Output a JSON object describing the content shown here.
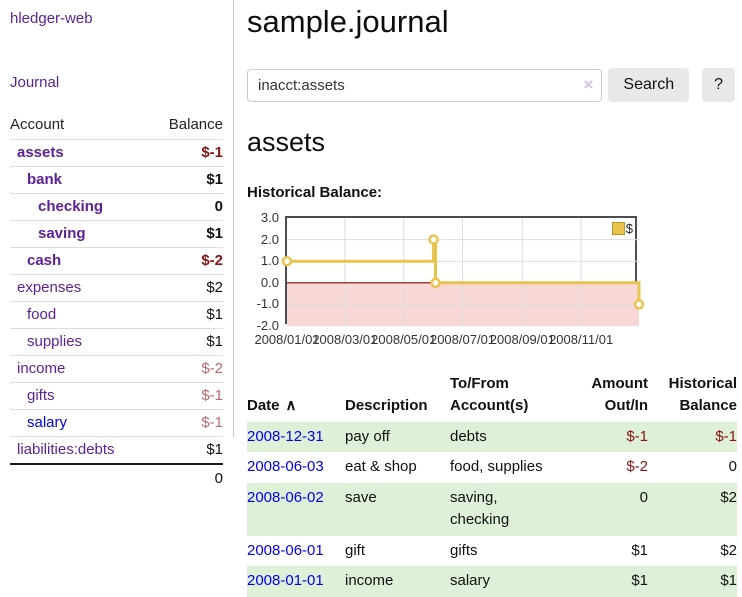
{
  "app": {
    "title": "hledger-web"
  },
  "colors": {
    "purple": "#5c1f99",
    "blue": "#0000ee",
    "neg_strong": "#8b1212",
    "neg_soft": "#b96a6a",
    "green_row": "#dff0d8",
    "yellow": "#e8c44d",
    "pink": "#f8d7d7",
    "zero_line": "#8b0000",
    "btn_bg": "#e8e8e8"
  },
  "sidebar": {
    "journal_link": "Journal",
    "headers": {
      "account": "Account",
      "balance": "Balance"
    },
    "accounts": [
      {
        "name": "assets",
        "level": 1,
        "bold": true,
        "link_color": "purple",
        "balance": "$-1",
        "balance_style": "neg-strong"
      },
      {
        "name": "bank",
        "level": 2,
        "bold": true,
        "link_color": "purple",
        "balance": "$1",
        "balance_style": ""
      },
      {
        "name": "checking",
        "level": 3,
        "bold": true,
        "link_color": "purple",
        "balance": "0",
        "balance_style": ""
      },
      {
        "name": "saving",
        "level": 3,
        "bold": true,
        "link_color": "purple",
        "balance": "$1",
        "balance_style": ""
      },
      {
        "name": "cash",
        "level": 2,
        "bold": true,
        "link_color": "purple",
        "balance": "$-2",
        "balance_style": "neg-strong"
      },
      {
        "name": "expenses",
        "level": 1,
        "bold": false,
        "link_color": "purple",
        "balance": "$2",
        "balance_style": ""
      },
      {
        "name": "food",
        "level": 2,
        "bold": false,
        "link_color": "purple",
        "balance": "$1",
        "balance_style": ""
      },
      {
        "name": "supplies",
        "level": 2,
        "bold": false,
        "link_color": "purple",
        "balance": "$1",
        "balance_style": ""
      },
      {
        "name": "income",
        "level": 1,
        "bold": false,
        "link_color": "purple",
        "balance": "$-2",
        "balance_style": "neg-soft"
      },
      {
        "name": "gifts",
        "level": 2,
        "bold": false,
        "link_color": "purple",
        "balance": "$-1",
        "balance_style": "neg-soft"
      },
      {
        "name": "salary",
        "level": 2,
        "bold": false,
        "link_color": "blue",
        "balance": "$-1",
        "balance_style": "neg-soft"
      },
      {
        "name": "liabilities:debts",
        "level": 1,
        "bold": false,
        "link_color": "purple",
        "balance": "$1",
        "balance_style": ""
      }
    ],
    "total": "0"
  },
  "main": {
    "title": "sample.journal",
    "search": {
      "value": "inacct:assets",
      "clear_icon": "×",
      "button": "Search",
      "help_button": "?"
    },
    "account_heading": "assets",
    "chart_label": "Historical Balance:"
  },
  "chart_data": {
    "type": "line",
    "title": "Historical Balance",
    "step": true,
    "legend": [
      {
        "label": "$",
        "color": "#e8c44d"
      }
    ],
    "xlim": [
      "2008-01-01",
      "2008-12-31"
    ],
    "ylim": [
      -2,
      3
    ],
    "y_ticks": [
      "3.0",
      "2.0",
      "1.0",
      "0.0",
      "-1.0",
      "-2.0"
    ],
    "x_ticks": [
      "2008/01/01",
      "2008/03/01",
      "2008/05/01",
      "2008/07/01",
      "2008/09/01",
      "2008/11/01"
    ],
    "points": [
      {
        "date": "2008-01-01",
        "value": 1
      },
      {
        "date": "2008-06-01",
        "value": 2
      },
      {
        "date": "2008-06-03",
        "value": 0
      },
      {
        "date": "2008-12-31",
        "value": -1
      }
    ],
    "negative_region_shaded": true,
    "grid": true,
    "legend_position": "top-right"
  },
  "register_table": {
    "sort_icon": "∧",
    "headers": [
      {
        "text": "Date",
        "align": "left",
        "sortable": true
      },
      {
        "text": "Description",
        "align": "left"
      },
      {
        "text": "To/From Account(s)",
        "align": "left"
      },
      {
        "text": "Amount Out/In",
        "align": "right"
      },
      {
        "text": "Historical Balance",
        "align": "right"
      }
    ],
    "rows": [
      {
        "date": "2008-12-31",
        "description": "pay off",
        "tofrom": "debts",
        "amount": "$-1",
        "amount_neg": true,
        "balance": "$-1",
        "balance_neg": true
      },
      {
        "date": "2008-06-03",
        "description": "eat & shop",
        "tofrom": "food, supplies",
        "amount": "$-2",
        "amount_neg": true,
        "balance": "0",
        "balance_neg": false
      },
      {
        "date": "2008-06-02",
        "description": "save",
        "tofrom": "saving, checking",
        "amount": "0",
        "amount_neg": false,
        "balance": "$2",
        "balance_neg": false
      },
      {
        "date": "2008-06-01",
        "description": "gift",
        "tofrom": "gifts",
        "amount": "$1",
        "amount_neg": false,
        "balance": "$2",
        "balance_neg": false
      },
      {
        "date": "2008-01-01",
        "description": "income",
        "tofrom": "salary",
        "amount": "$1",
        "amount_neg": false,
        "balance": "$1",
        "balance_neg": false
      }
    ]
  }
}
